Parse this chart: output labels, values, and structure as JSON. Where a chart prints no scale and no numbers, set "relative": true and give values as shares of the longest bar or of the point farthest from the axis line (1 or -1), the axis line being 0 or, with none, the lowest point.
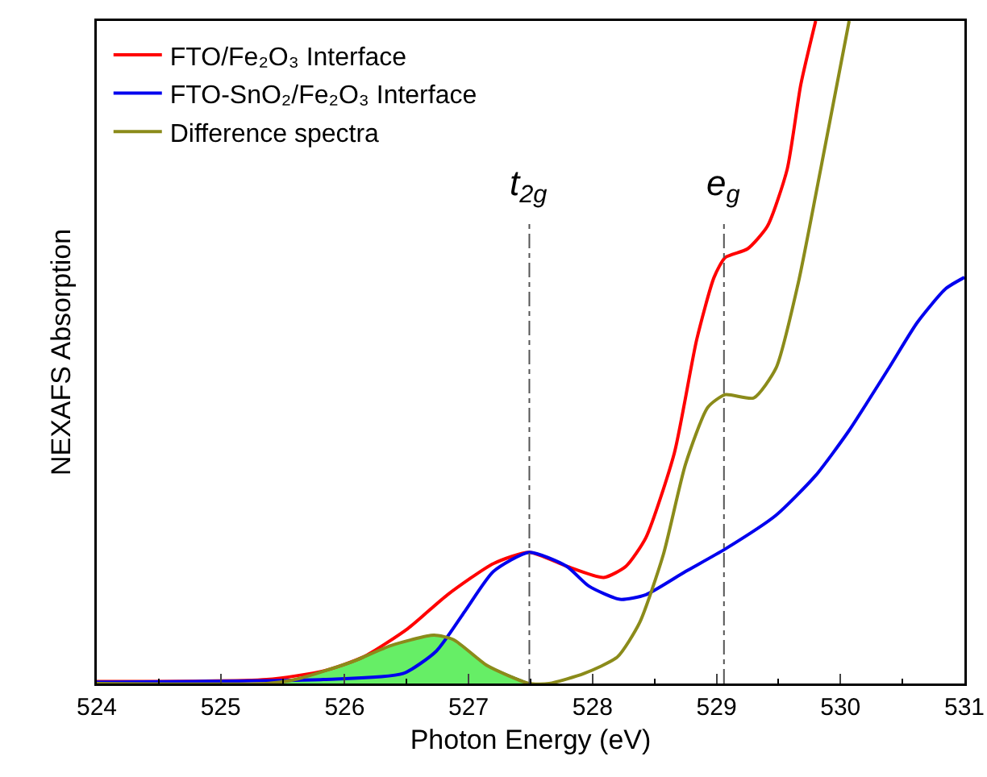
{
  "chart_data": {
    "type": "line",
    "xlabel": "Photon Energy (eV)",
    "ylabel": "NEXAFS Absorption",
    "relative": true,
    "xlim": [
      524,
      531
    ],
    "xticks": [
      524,
      525,
      526,
      527,
      528,
      529,
      530,
      531
    ],
    "grid": false,
    "legend": "top left",
    "marker": "none",
    "line_style": "solid",
    "series": [
      {
        "name": "FTO/Fe₂O₃ Interface",
        "color": "#ff0000",
        "x": [
          524,
          525.37,
          525.83,
          526.15,
          526.51,
          526.83,
          527.2,
          527.49,
          527.79,
          528.09,
          528.27,
          528.43,
          528.66,
          528.84,
          528.98,
          529.07,
          529.25,
          529.41,
          529.57,
          529.68,
          529.8
        ],
        "values": [
          0.003,
          0.006,
          0.019,
          0.04,
          0.083,
          0.134,
          0.181,
          0.198,
          0.177,
          0.16,
          0.177,
          0.22,
          0.348,
          0.519,
          0.613,
          0.643,
          0.656,
          0.69,
          0.776,
          0.904,
          1.0
        ]
      },
      {
        "name": "FTO-SnO₂/Fe₂O₃ Interface",
        "color": "#0000ee",
        "x": [
          524,
          525.83,
          526.47,
          526.74,
          526.97,
          527.2,
          527.49,
          527.79,
          527.97,
          528.22,
          528.43,
          528.75,
          529.07,
          529.48,
          529.8,
          530.07,
          530.39,
          530.62,
          530.85,
          531
        ],
        "values": [
          0.002,
          0.006,
          0.015,
          0.049,
          0.109,
          0.169,
          0.198,
          0.177,
          0.147,
          0.127,
          0.134,
          0.169,
          0.203,
          0.254,
          0.314,
          0.382,
          0.476,
          0.545,
          0.596,
          0.613
        ]
      },
      {
        "type": "area",
        "color": "#66ee66",
        "x": [
          525.37,
          525.6,
          526.05,
          526.37,
          526.72,
          526.88,
          527.15,
          527.49
        ],
        "values": [
          0,
          0.006,
          0.032,
          0.057,
          0.073,
          0.066,
          0.027,
          0
        ]
      },
      {
        "name": "Difference spectra",
        "color": "#8b8b1a",
        "x": [
          524,
          525.37,
          525.6,
          526.05,
          526.37,
          526.72,
          526.88,
          527.15,
          527.49,
          527.65,
          527.93,
          528.2,
          528.38,
          528.57,
          528.75,
          528.93,
          529.07,
          529.3,
          529.48,
          529.66,
          529.84,
          530.07
        ],
        "values": [
          0,
          0,
          0.006,
          0.032,
          0.057,
          0.073,
          0.066,
          0.027,
          0,
          0,
          0.015,
          0.04,
          0.092,
          0.194,
          0.331,
          0.417,
          0.436,
          0.431,
          0.476,
          0.605,
          0.776,
          1.0
        ]
      }
    ],
    "ref_lines": [
      {
        "axis": "x",
        "value": 527.49,
        "label": "t$_{2g}$",
        "color": "#555555",
        "line_style": "dashed"
      },
      {
        "axis": "x",
        "value": 529.06,
        "label": "e$_{g}$",
        "color": "#555555",
        "line_style": "dashed"
      }
    ]
  }
}
